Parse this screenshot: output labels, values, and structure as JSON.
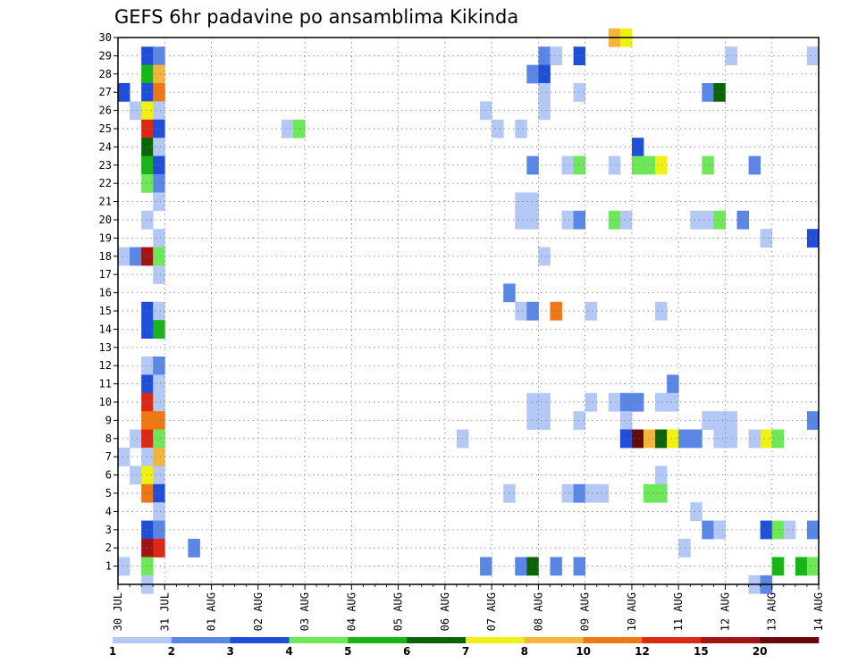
{
  "chart_data": {
    "type": "heatmap",
    "title": "GEFS 6hr padavine po ansamblima Kikinda",
    "x_tick_labels": [
      "30 JUL",
      "31 JUL",
      "01 AUG",
      "02 AUG",
      "03 AUG",
      "04 AUG",
      "05 AUG",
      "06 AUG",
      "07 AUG",
      "08 AUG",
      "09 AUG",
      "10 AUG",
      "11 AUG",
      "12 AUG",
      "13 AUG",
      "14 AUG"
    ],
    "y_tick_labels": [
      "1",
      "2",
      "3",
      "4",
      "5",
      "6",
      "7",
      "8",
      "9",
      "10",
      "11",
      "12",
      "13",
      "14",
      "15",
      "16",
      "17",
      "18",
      "19",
      "20",
      "21",
      "22",
      "23",
      "24",
      "25",
      "26",
      "27",
      "28",
      "29",
      "30"
    ],
    "ylim": [
      0,
      30
    ],
    "x_range_steps": [
      0,
      60
    ],
    "grid": true,
    "colorbar": {
      "labels": [
        "1",
        "2",
        "3",
        "4",
        "5",
        "6",
        "7",
        "8",
        "10",
        "12",
        "15",
        "20"
      ],
      "colors": [
        "#b4c8f5",
        "#5a86e6",
        "#1f4fd8",
        "#6ee85a",
        "#19b419",
        "#0a640a",
        "#f0f014",
        "#f5b43c",
        "#f07814",
        "#dc2814",
        "#a01414",
        "#640a0a"
      ]
    },
    "cells": [
      [
        30,
        42,
        "#f5b43c"
      ],
      [
        30,
        43,
        "#f0f014"
      ],
      [
        29,
        2,
        "#1f4fd8"
      ],
      [
        29,
        3,
        "#5a86e6"
      ],
      [
        29,
        36,
        "#5a86e6"
      ],
      [
        29,
        37,
        "#b4c8f5"
      ],
      [
        29,
        39,
        "#1f4fd8"
      ],
      [
        29,
        52,
        "#b4c8f5"
      ],
      [
        29,
        59,
        "#b4c8f5"
      ],
      [
        28,
        2,
        "#19b419"
      ],
      [
        28,
        3,
        "#f5b43c"
      ],
      [
        28,
        35,
        "#5a86e6"
      ],
      [
        28,
        36,
        "#1f4fd8"
      ],
      [
        27,
        0,
        "#1f4fd8"
      ],
      [
        27,
        2,
        "#1f4fd8"
      ],
      [
        27,
        3,
        "#f07814"
      ],
      [
        27,
        36,
        "#b4c8f5"
      ],
      [
        27,
        39,
        "#b4c8f5"
      ],
      [
        27,
        50,
        "#5a86e6"
      ],
      [
        27,
        51,
        "#0a640a"
      ],
      [
        26,
        1,
        "#b4c8f5"
      ],
      [
        26,
        2,
        "#f0f014"
      ],
      [
        26,
        3,
        "#b4c8f5"
      ],
      [
        26,
        31,
        "#b4c8f5"
      ],
      [
        26,
        36,
        "#b4c8f5"
      ],
      [
        25,
        2,
        "#dc2814"
      ],
      [
        25,
        3,
        "#1f4fd8"
      ],
      [
        25,
        14,
        "#b4c8f5"
      ],
      [
        25,
        15,
        "#6ee85a"
      ],
      [
        25,
        32,
        "#b4c8f5"
      ],
      [
        25,
        34,
        "#b4c8f5"
      ],
      [
        24,
        2,
        "#0a640a"
      ],
      [
        24,
        3,
        "#b4c8f5"
      ],
      [
        24,
        44,
        "#1f4fd8"
      ],
      [
        23,
        2,
        "#19b419"
      ],
      [
        23,
        3,
        "#1f4fd8"
      ],
      [
        23,
        35,
        "#5a86e6"
      ],
      [
        23,
        38,
        "#b4c8f5"
      ],
      [
        23,
        39,
        "#6ee85a"
      ],
      [
        23,
        42,
        "#b4c8f5"
      ],
      [
        23,
        44,
        "#6ee85a"
      ],
      [
        23,
        45,
        "#6ee85a"
      ],
      [
        23,
        46,
        "#f0f014"
      ],
      [
        23,
        50,
        "#6ee85a"
      ],
      [
        23,
        54,
        "#5a86e6"
      ],
      [
        22,
        2,
        "#6ee85a"
      ],
      [
        22,
        3,
        "#5a86e6"
      ],
      [
        21,
        3,
        "#b4c8f5"
      ],
      [
        21,
        34,
        "#b4c8f5"
      ],
      [
        21,
        35,
        "#b4c8f5"
      ],
      [
        20,
        2,
        "#b4c8f5"
      ],
      [
        20,
        34,
        "#b4c8f5"
      ],
      [
        20,
        35,
        "#b4c8f5"
      ],
      [
        20,
        38,
        "#b4c8f5"
      ],
      [
        20,
        39,
        "#5a86e6"
      ],
      [
        20,
        42,
        "#6ee85a"
      ],
      [
        20,
        43,
        "#b4c8f5"
      ],
      [
        20,
        49,
        "#b4c8f5"
      ],
      [
        20,
        50,
        "#b4c8f5"
      ],
      [
        20,
        51,
        "#6ee85a"
      ],
      [
        20,
        53,
        "#5a86e6"
      ],
      [
        19,
        3,
        "#b4c8f5"
      ],
      [
        19,
        55,
        "#b4c8f5"
      ],
      [
        19,
        59,
        "#1f4fd8"
      ],
      [
        18,
        0,
        "#b4c8f5"
      ],
      [
        18,
        1,
        "#5a86e6"
      ],
      [
        18,
        2,
        "#a01414"
      ],
      [
        18,
        3,
        "#6ee85a"
      ],
      [
        18,
        36,
        "#b4c8f5"
      ],
      [
        17,
        3,
        "#b4c8f5"
      ],
      [
        16,
        33,
        "#5a86e6"
      ],
      [
        15,
        2,
        "#1f4fd8"
      ],
      [
        15,
        3,
        "#b4c8f5"
      ],
      [
        15,
        34,
        "#b4c8f5"
      ],
      [
        15,
        35,
        "#5a86e6"
      ],
      [
        15,
        37,
        "#f07814"
      ],
      [
        15,
        40,
        "#b4c8f5"
      ],
      [
        15,
        46,
        "#b4c8f5"
      ],
      [
        14,
        2,
        "#1f4fd8"
      ],
      [
        14,
        3,
        "#19b419"
      ],
      [
        12,
        2,
        "#b4c8f5"
      ],
      [
        12,
        3,
        "#5a86e6"
      ],
      [
        11,
        2,
        "#1f4fd8"
      ],
      [
        11,
        3,
        "#b4c8f5"
      ],
      [
        11,
        47,
        "#5a86e6"
      ],
      [
        10,
        2,
        "#dc2814"
      ],
      [
        10,
        3,
        "#b4c8f5"
      ],
      [
        10,
        35,
        "#b4c8f5"
      ],
      [
        10,
        36,
        "#b4c8f5"
      ],
      [
        10,
        40,
        "#b4c8f5"
      ],
      [
        10,
        42,
        "#b4c8f5"
      ],
      [
        10,
        43,
        "#5a86e6"
      ],
      [
        10,
        44,
        "#5a86e6"
      ],
      [
        10,
        46,
        "#b4c8f5"
      ],
      [
        10,
        47,
        "#b4c8f5"
      ],
      [
        9,
        2,
        "#f07814"
      ],
      [
        9,
        3,
        "#f07814"
      ],
      [
        9,
        35,
        "#b4c8f5"
      ],
      [
        9,
        36,
        "#b4c8f5"
      ],
      [
        9,
        39,
        "#b4c8f5"
      ],
      [
        9,
        43,
        "#b4c8f5"
      ],
      [
        9,
        50,
        "#b4c8f5"
      ],
      [
        9,
        51,
        "#b4c8f5"
      ],
      [
        9,
        52,
        "#b4c8f5"
      ],
      [
        9,
        59,
        "#5a86e6"
      ],
      [
        8,
        1,
        "#b4c8f5"
      ],
      [
        8,
        2,
        "#dc2814"
      ],
      [
        8,
        3,
        "#6ee85a"
      ],
      [
        8,
        29,
        "#b4c8f5"
      ],
      [
        8,
        43,
        "#1f4fd8"
      ],
      [
        8,
        44,
        "#640a0a"
      ],
      [
        8,
        45,
        "#f5b43c"
      ],
      [
        8,
        46,
        "#0a640a"
      ],
      [
        8,
        47,
        "#f0f014"
      ],
      [
        8,
        48,
        "#5a86e6"
      ],
      [
        8,
        49,
        "#5a86e6"
      ],
      [
        8,
        51,
        "#b4c8f5"
      ],
      [
        8,
        52,
        "#b4c8f5"
      ],
      [
        8,
        54,
        "#b4c8f5"
      ],
      [
        8,
        55,
        "#f0f014"
      ],
      [
        8,
        56,
        "#6ee85a"
      ],
      [
        7,
        0,
        "#b4c8f5"
      ],
      [
        7,
        2,
        "#b4c8f5"
      ],
      [
        7,
        3,
        "#f5b43c"
      ],
      [
        6,
        1,
        "#b4c8f5"
      ],
      [
        6,
        2,
        "#f0f014"
      ],
      [
        6,
        3,
        "#b4c8f5"
      ],
      [
        6,
        46,
        "#b4c8f5"
      ],
      [
        5,
        2,
        "#f07814"
      ],
      [
        5,
        3,
        "#1f4fd8"
      ],
      [
        5,
        33,
        "#b4c8f5"
      ],
      [
        5,
        38,
        "#b4c8f5"
      ],
      [
        5,
        39,
        "#5a86e6"
      ],
      [
        5,
        40,
        "#b4c8f5"
      ],
      [
        5,
        41,
        "#b4c8f5"
      ],
      [
        5,
        45,
        "#6ee85a"
      ],
      [
        5,
        46,
        "#6ee85a"
      ],
      [
        4,
        3,
        "#b4c8f5"
      ],
      [
        4,
        49,
        "#b4c8f5"
      ],
      [
        3,
        2,
        "#1f4fd8"
      ],
      [
        3,
        3,
        "#5a86e6"
      ],
      [
        3,
        50,
        "#5a86e6"
      ],
      [
        3,
        51,
        "#b4c8f5"
      ],
      [
        3,
        55,
        "#1f4fd8"
      ],
      [
        3,
        56,
        "#6ee85a"
      ],
      [
        3,
        57,
        "#b4c8f5"
      ],
      [
        3,
        59,
        "#5a86e6"
      ],
      [
        2,
        2,
        "#a01414"
      ],
      [
        2,
        3,
        "#dc2814"
      ],
      [
        2,
        6,
        "#5a86e6"
      ],
      [
        2,
        48,
        "#b4c8f5"
      ],
      [
        1,
        0,
        "#b4c8f5"
      ],
      [
        1,
        2,
        "#6ee85a"
      ],
      [
        1,
        31,
        "#5a86e6"
      ],
      [
        1,
        34,
        "#5a86e6"
      ],
      [
        1,
        35,
        "#0a640a"
      ],
      [
        1,
        37,
        "#5a86e6"
      ],
      [
        1,
        39,
        "#5a86e6"
      ],
      [
        1,
        56,
        "#19b419"
      ],
      [
        1,
        58,
        "#19b419"
      ],
      [
        1,
        59,
        "#6ee85a"
      ],
      [
        0,
        2,
        "#b4c8f5"
      ],
      [
        0,
        54,
        "#b4c8f5"
      ],
      [
        0,
        55,
        "#5a86e6"
      ]
    ]
  }
}
